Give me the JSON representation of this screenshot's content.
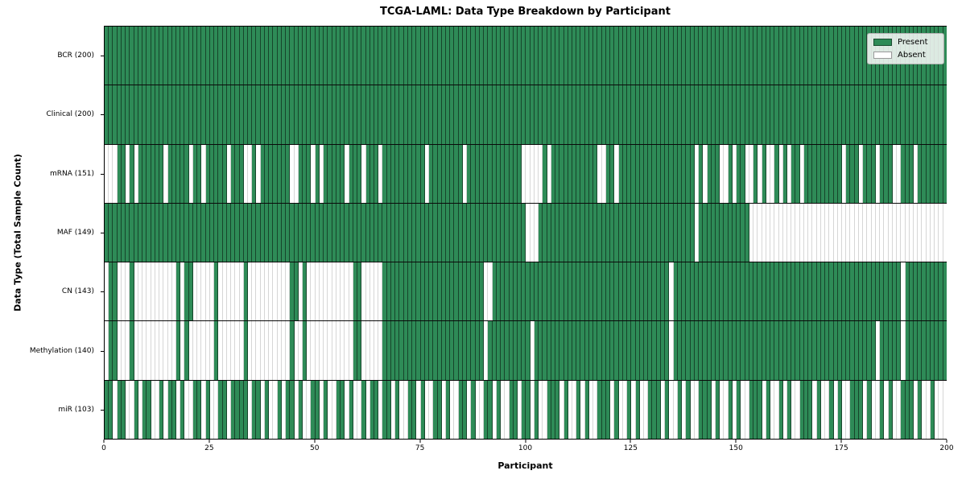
{
  "figure": {
    "title": "TCGA-LAML: Data Type Breakdown by Participant",
    "xlabel": "Participant",
    "ylabel": "Data Type (Total Sample Count)"
  },
  "legend": {
    "entries": [
      {
        "label": "Present",
        "color": "#2e8b57"
      },
      {
        "label": "Absent",
        "color": "#ffffff"
      }
    ]
  },
  "chart_data": {
    "type": "heatmap",
    "title": "TCGA-LAML: Data Type Breakdown by Participant",
    "xlabel": "Participant",
    "ylabel": "Data Type (Total Sample Count)",
    "xlim": [
      0,
      200
    ],
    "x_ticks": [
      0,
      25,
      50,
      75,
      100,
      125,
      150,
      175,
      200
    ],
    "n_participants": 200,
    "grid": "column-separators",
    "legend_position": "upper right",
    "colors": {
      "present": "#2e8b57",
      "absent": "#ffffff"
    },
    "rows": [
      {
        "data_type": "BCR",
        "label": "BCR (200)",
        "present_count": 200,
        "absent_columns": []
      },
      {
        "data_type": "Clinical",
        "label": "Clinical (200)",
        "present_count": 200,
        "absent_columns": []
      },
      {
        "data_type": "mRNA",
        "label": "mRNA (151)",
        "present_count": 151,
        "absent_columns": [
          0,
          1,
          2,
          5,
          7,
          14,
          20,
          23,
          29,
          33,
          34,
          36,
          44,
          45,
          49,
          51,
          57,
          61,
          65,
          76,
          85,
          99,
          100,
          101,
          102,
          103,
          105,
          117,
          118,
          121,
          140,
          142,
          146,
          147,
          149,
          152,
          153,
          155,
          157,
          158,
          160,
          162,
          165,
          175,
          179,
          183,
          187,
          188,
          192
        ]
      },
      {
        "data_type": "MAF",
        "label": "MAF (149)",
        "present_count": 149,
        "absent_columns": [
          100,
          101,
          102,
          140,
          153,
          154,
          155,
          156,
          157,
          158,
          159,
          160,
          161,
          162,
          163,
          164,
          165,
          166,
          167,
          168,
          169,
          170,
          171,
          172,
          173,
          174,
          175,
          176,
          177,
          178,
          179,
          180,
          181,
          182,
          183,
          184,
          185,
          186,
          187,
          188,
          189,
          190,
          191,
          192,
          193,
          194,
          195,
          196,
          197,
          198,
          199
        ]
      },
      {
        "data_type": "CN",
        "label": "CN (143)",
        "present_count": 143,
        "absent_columns": [
          0,
          3,
          4,
          5,
          7,
          8,
          9,
          10,
          11,
          12,
          13,
          14,
          15,
          16,
          18,
          21,
          22,
          23,
          24,
          25,
          27,
          28,
          29,
          30,
          31,
          32,
          34,
          35,
          36,
          37,
          38,
          39,
          40,
          41,
          42,
          43,
          46,
          48,
          49,
          50,
          51,
          52,
          53,
          54,
          55,
          56,
          57,
          58,
          61,
          62,
          63,
          64,
          65,
          90,
          91,
          134,
          189
        ]
      },
      {
        "data_type": "Methylation",
        "label": "Methylation (140)",
        "present_count": 140,
        "absent_columns": [
          0,
          3,
          4,
          5,
          7,
          8,
          9,
          10,
          11,
          12,
          13,
          14,
          15,
          16,
          18,
          20,
          21,
          22,
          23,
          24,
          25,
          27,
          28,
          29,
          30,
          31,
          32,
          34,
          35,
          36,
          37,
          38,
          39,
          40,
          41,
          42,
          43,
          45,
          46,
          48,
          49,
          50,
          51,
          52,
          53,
          54,
          55,
          56,
          57,
          58,
          61,
          62,
          63,
          64,
          65,
          90,
          101,
          134,
          183,
          189
        ]
      },
      {
        "data_type": "miR",
        "label": "miR (103)",
        "present_count": 103,
        "absent_columns": [
          2,
          5,
          6,
          8,
          11,
          12,
          14,
          17,
          19,
          20,
          23,
          25,
          26,
          29,
          34,
          37,
          39,
          40,
          42,
          45,
          47,
          48,
          51,
          53,
          54,
          57,
          59,
          60,
          62,
          65,
          68,
          70,
          71,
          74,
          76,
          77,
          80,
          82,
          83,
          86,
          88,
          89,
          92,
          94,
          95,
          98,
          101,
          103,
          104,
          108,
          110,
          111,
          113,
          115,
          116,
          120,
          122,
          123,
          125,
          127,
          128,
          132,
          134,
          135,
          137,
          139,
          140,
          144,
          146,
          147,
          149,
          151,
          152,
          156,
          158,
          159,
          161,
          163,
          164,
          168,
          170,
          171,
          173,
          175,
          176,
          180,
          182,
          183,
          185,
          187,
          188,
          192,
          194,
          195,
          197,
          198,
          199
        ]
      }
    ]
  }
}
